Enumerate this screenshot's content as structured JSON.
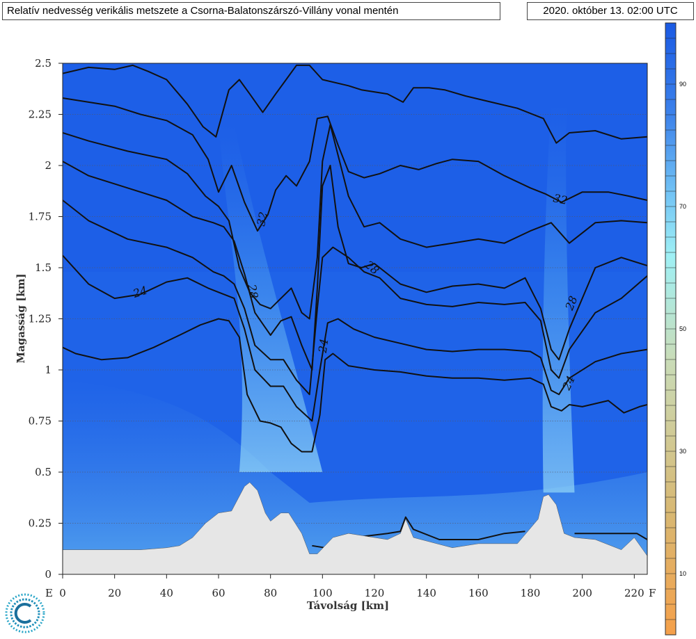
{
  "header": {
    "title": "Relatív nedvesség verikális metszete a Csorna-Balatonszárszó-Villány vonal mentén",
    "timestamp": "2020. október 13. 02:00 UTC"
  },
  "chart_data": {
    "type": "heatmap",
    "title": "Relatív nedvesség verikális metszete a Csorna-Balatonszárszó-Villány vonal mentén",
    "xlabel": "Távolság [km]",
    "ylabel": "Magasság [km]",
    "xlim": [
      0,
      225
    ],
    "ylim": [
      0,
      2.5
    ],
    "x_ticks": [
      "0",
      "20",
      "40",
      "60",
      "80",
      "100",
      "120",
      "140",
      "160",
      "180",
      "200",
      "220"
    ],
    "y_ticks": [
      "0",
      "0.25",
      "0.5",
      "0.75",
      "1",
      "1.25",
      "1.5",
      "1.75",
      "2",
      "2.25",
      "2.5"
    ],
    "x_end_labels": {
      "left": "E",
      "right": "F"
    },
    "grid": "horizontal dotted",
    "colorbar": {
      "range": [
        0,
        100
      ],
      "tick_labels": [
        "10",
        "30",
        "50",
        "70",
        "90"
      ],
      "colors": {
        "low": "#f5a04a",
        "mid": "#c9dcb8",
        "high": "#1f5fe6"
      }
    },
    "contour_labels": [
      "32",
      "24",
      "28",
      "28",
      "24",
      "28",
      "24"
    ],
    "terrain": [
      [
        0,
        0.12
      ],
      [
        30,
        0.12
      ],
      [
        40,
        0.13
      ],
      [
        45,
        0.14
      ],
      [
        50,
        0.18
      ],
      [
        55,
        0.25
      ],
      [
        60,
        0.3
      ],
      [
        65,
        0.31
      ],
      [
        70,
        0.43
      ],
      [
        72,
        0.45
      ],
      [
        75,
        0.41
      ],
      [
        78,
        0.3
      ],
      [
        80,
        0.26
      ],
      [
        84,
        0.3
      ],
      [
        87,
        0.3
      ],
      [
        92,
        0.2
      ],
      [
        95,
        0.1
      ],
      [
        98,
        0.1
      ],
      [
        104,
        0.18
      ],
      [
        110,
        0.2
      ],
      [
        125,
        0.17
      ],
      [
        130,
        0.2
      ],
      [
        132,
        0.27
      ],
      [
        135,
        0.18
      ],
      [
        150,
        0.13
      ],
      [
        160,
        0.15
      ],
      [
        175,
        0.15
      ],
      [
        183,
        0.27
      ],
      [
        185,
        0.38
      ],
      [
        187,
        0.39
      ],
      [
        190,
        0.34
      ],
      [
        193,
        0.2
      ],
      [
        197,
        0.18
      ],
      [
        205,
        0.17
      ],
      [
        215,
        0.12
      ],
      [
        220,
        0.18
      ],
      [
        225,
        0.09
      ]
    ],
    "contours": [
      [
        [
          0,
          1.11
        ],
        [
          5,
          1.08
        ],
        [
          15,
          1.05
        ],
        [
          25,
          1.06
        ],
        [
          35,
          1.11
        ],
        [
          45,
          1.17
        ],
        [
          53,
          1.22
        ],
        [
          60,
          1.25
        ],
        [
          64,
          1.24
        ],
        [
          68,
          1.16
        ],
        [
          71,
          0.88
        ],
        [
          76,
          0.75
        ],
        [
          80,
          0.74
        ],
        [
          84,
          0.72
        ],
        [
          88,
          0.64
        ],
        [
          92,
          0.6
        ],
        [
          96,
          0.6
        ],
        [
          99,
          0.78
        ],
        [
          101,
          1.05
        ],
        [
          104,
          1.08
        ],
        [
          110,
          1.02
        ],
        [
          120,
          1.0
        ],
        [
          130,
          0.99
        ],
        [
          140,
          0.97
        ],
        [
          150,
          0.96
        ],
        [
          160,
          0.96
        ],
        [
          170,
          0.95
        ],
        [
          180,
          0.96
        ],
        [
          185,
          0.93
        ],
        [
          188,
          0.82
        ],
        [
          192,
          0.8
        ],
        [
          195,
          0.83
        ],
        [
          200,
          0.82
        ],
        [
          210,
          0.85
        ],
        [
          216,
          0.79
        ],
        [
          222,
          0.82
        ],
        [
          225,
          0.83
        ]
      ],
      [
        [
          0,
          1.56
        ],
        [
          10,
          1.42
        ],
        [
          20,
          1.35
        ],
        [
          30,
          1.37
        ],
        [
          40,
          1.43
        ],
        [
          48,
          1.45
        ],
        [
          56,
          1.4
        ],
        [
          60,
          1.38
        ],
        [
          66,
          1.35
        ],
        [
          70,
          1.2
        ],
        [
          74,
          1.0
        ],
        [
          80,
          0.92
        ],
        [
          85,
          0.92
        ],
        [
          90,
          0.82
        ],
        [
          96,
          0.75
        ],
        [
          99,
          1.0
        ],
        [
          102,
          1.23
        ],
        [
          106,
          1.25
        ],
        [
          112,
          1.2
        ],
        [
          120,
          1.16
        ],
        [
          130,
          1.13
        ],
        [
          140,
          1.1
        ],
        [
          150,
          1.09
        ],
        [
          160,
          1.1
        ],
        [
          170,
          1.1
        ],
        [
          180,
          1.09
        ],
        [
          184,
          1.06
        ],
        [
          188,
          0.9
        ],
        [
          191,
          0.88
        ],
        [
          195,
          0.96
        ],
        [
          205,
          1.04
        ],
        [
          215,
          1.08
        ],
        [
          225,
          1.1
        ]
      ],
      [
        [
          0,
          1.83
        ],
        [
          10,
          1.73
        ],
        [
          25,
          1.64
        ],
        [
          40,
          1.6
        ],
        [
          50,
          1.55
        ],
        [
          58,
          1.48
        ],
        [
          62,
          1.46
        ],
        [
          66,
          1.42
        ],
        [
          70,
          1.3
        ],
        [
          74,
          1.12
        ],
        [
          80,
          1.05
        ],
        [
          85,
          1.05
        ],
        [
          90,
          0.95
        ],
        [
          95,
          0.88
        ],
        [
          98,
          1.3
        ],
        [
          100,
          1.55
        ],
        [
          104,
          1.6
        ],
        [
          110,
          1.55
        ],
        [
          116,
          1.48
        ],
        [
          122,
          1.45
        ],
        [
          130,
          1.35
        ],
        [
          140,
          1.32
        ],
        [
          150,
          1.31
        ],
        [
          160,
          1.33
        ],
        [
          170,
          1.32
        ],
        [
          178,
          1.33
        ],
        [
          184,
          1.24
        ],
        [
          188,
          1.0
        ],
        [
          191,
          0.96
        ],
        [
          195,
          1.1
        ],
        [
          205,
          1.28
        ],
        [
          215,
          1.35
        ],
        [
          225,
          1.46
        ]
      ],
      [
        [
          0,
          2.02
        ],
        [
          10,
          1.95
        ],
        [
          25,
          1.89
        ],
        [
          40,
          1.83
        ],
        [
          50,
          1.75
        ],
        [
          58,
          1.72
        ],
        [
          62,
          1.7
        ],
        [
          66,
          1.63
        ],
        [
          70,
          1.47
        ],
        [
          74,
          1.28
        ],
        [
          80,
          1.17
        ],
        [
          84,
          1.24
        ],
        [
          88,
          1.26
        ],
        [
          92,
          1.12
        ],
        [
          96,
          1.0
        ],
        [
          98,
          1.4
        ],
        [
          100,
          1.9
        ],
        [
          103,
          2.0
        ],
        [
          106,
          1.7
        ],
        [
          110,
          1.52
        ],
        [
          115,
          1.5
        ],
        [
          120,
          1.52
        ],
        [
          130,
          1.42
        ],
        [
          140,
          1.38
        ],
        [
          150,
          1.41
        ],
        [
          160,
          1.42
        ],
        [
          170,
          1.4
        ],
        [
          178,
          1.45
        ],
        [
          184,
          1.3
        ],
        [
          188,
          1.1
        ],
        [
          191,
          1.05
        ],
        [
          195,
          1.2
        ],
        [
          205,
          1.5
        ],
        [
          215,
          1.55
        ],
        [
          225,
          1.51
        ]
      ],
      [
        [
          0,
          2.16
        ],
        [
          10,
          2.12
        ],
        [
          25,
          2.07
        ],
        [
          40,
          2.03
        ],
        [
          48,
          1.96
        ],
        [
          55,
          1.85
        ],
        [
          60,
          1.8
        ],
        [
          64,
          1.73
        ],
        [
          68,
          1.5
        ],
        [
          72,
          1.38
        ],
        [
          76,
          1.32
        ],
        [
          80,
          1.3
        ],
        [
          84,
          1.35
        ],
        [
          88,
          1.4
        ],
        [
          92,
          1.28
        ],
        [
          95,
          1.25
        ],
        [
          98,
          1.55
        ],
        [
          100,
          2.02
        ],
        [
          103,
          2.2
        ],
        [
          106,
          2.05
        ],
        [
          110,
          1.85
        ],
        [
          116,
          1.7
        ],
        [
          122,
          1.72
        ],
        [
          130,
          1.64
        ],
        [
          140,
          1.6
        ],
        [
          150,
          1.62
        ],
        [
          160,
          1.64
        ],
        [
          170,
          1.62
        ],
        [
          180,
          1.68
        ],
        [
          188,
          1.72
        ],
        [
          195,
          1.62
        ],
        [
          205,
          1.72
        ],
        [
          215,
          1.73
        ],
        [
          225,
          1.72
        ]
      ],
      [
        [
          0,
          2.33
        ],
        [
          10,
          2.31
        ],
        [
          20,
          2.29
        ],
        [
          30,
          2.25
        ],
        [
          40,
          2.22
        ],
        [
          50,
          2.15
        ],
        [
          56,
          2.03
        ],
        [
          60,
          1.87
        ],
        [
          65,
          2.0
        ],
        [
          70,
          1.82
        ],
        [
          75,
          1.68
        ],
        [
          79,
          1.76
        ],
        [
          82,
          1.88
        ],
        [
          86,
          1.95
        ],
        [
          90,
          1.9
        ],
        [
          95,
          2.02
        ],
        [
          98,
          2.23
        ],
        [
          102,
          2.24
        ],
        [
          106,
          2.1
        ],
        [
          110,
          1.97
        ],
        [
          116,
          1.94
        ],
        [
          122,
          1.96
        ],
        [
          130,
          2.0
        ],
        [
          137,
          1.98
        ],
        [
          144,
          2.01
        ],
        [
          150,
          2.03
        ],
        [
          160,
          2.02
        ],
        [
          170,
          1.95
        ],
        [
          180,
          1.89
        ],
        [
          186,
          1.86
        ],
        [
          192,
          1.82
        ],
        [
          200,
          1.87
        ],
        [
          210,
          1.87
        ],
        [
          218,
          1.85
        ],
        [
          225,
          1.83
        ]
      ],
      [
        [
          0,
          2.45
        ],
        [
          10,
          2.48
        ],
        [
          20,
          2.47
        ],
        [
          27,
          2.49
        ],
        [
          33,
          2.46
        ],
        [
          40,
          2.42
        ],
        [
          48,
          2.3
        ],
        [
          54,
          2.19
        ],
        [
          59,
          2.14
        ],
        [
          64,
          2.37
        ],
        [
          68,
          2.42
        ],
        [
          72,
          2.35
        ],
        [
          77,
          2.26
        ],
        [
          82,
          2.35
        ],
        [
          86,
          2.42
        ],
        [
          90,
          2.49
        ],
        [
          95,
          2.49
        ],
        [
          100,
          2.42
        ],
        [
          110,
          2.39
        ],
        [
          115,
          2.37
        ],
        [
          125,
          2.35
        ],
        [
          131,
          2.31
        ],
        [
          135,
          2.38
        ],
        [
          141,
          2.38
        ],
        [
          147,
          2.37
        ],
        [
          155,
          2.34
        ],
        [
          165,
          2.31
        ],
        [
          175,
          2.28
        ],
        [
          185,
          2.23
        ],
        [
          190,
          2.11
        ],
        [
          195,
          2.16
        ],
        [
          205,
          2.17
        ],
        [
          215,
          2.13
        ],
        [
          225,
          2.14
        ]
      ]
    ],
    "low_contours": [
      [
        [
          96,
          0.14
        ],
        [
          101,
          0.13
        ],
        [
          106,
          0.17
        ],
        [
          112,
          0.18
        ],
        [
          125,
          0.2
        ],
        [
          130,
          0.21
        ],
        [
          132,
          0.28
        ],
        [
          135,
          0.22
        ],
        [
          145,
          0.17
        ],
        [
          160,
          0.17
        ],
        [
          170,
          0.2
        ],
        [
          178,
          0.21
        ]
      ],
      [
        [
          197,
          0.2
        ],
        [
          205,
          0.2
        ],
        [
          215,
          0.2
        ],
        [
          221,
          0.2
        ],
        [
          225,
          0.17
        ]
      ]
    ]
  }
}
